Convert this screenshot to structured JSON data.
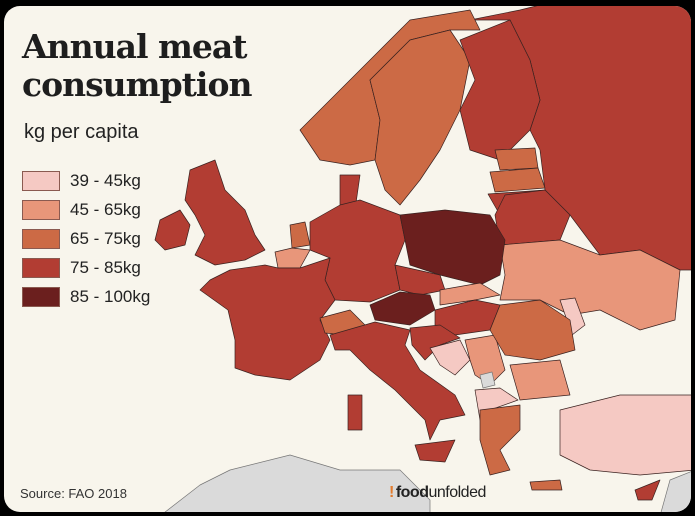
{
  "title_line1": "Annual meat",
  "title_line2": "consumption",
  "subtitle": "kg per capita",
  "legend": [
    {
      "label": "39 - 45kg",
      "color": "#f5c9c3"
    },
    {
      "label": "45 - 65kg",
      "color": "#e8967a"
    },
    {
      "label": "65 - 75kg",
      "color": "#cc6a45"
    },
    {
      "label": "75 - 85kg",
      "color": "#b23d33"
    },
    {
      "label": "85 - 100kg",
      "color": "#6b1f1e"
    }
  ],
  "source": "Source: FAO 2018",
  "logo": {
    "bold": "food",
    "regular": "unfolded"
  }
}
